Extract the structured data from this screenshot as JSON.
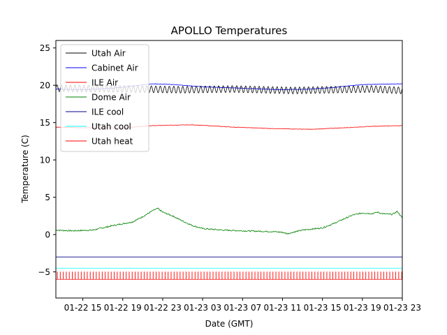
{
  "chart_data": {
    "type": "line",
    "title": "APOLLO Temperatures",
    "xlabel": "Date (GMT)",
    "ylabel": "Temperature (C)",
    "xlim_hours": [
      12.3,
      47.0
    ],
    "ylim": [
      -8.5,
      26
    ],
    "grid": false,
    "legend_position": "top-left",
    "x_ticks": [
      {
        "hours": 15,
        "label": "01-22 15"
      },
      {
        "hours": 19,
        "label": "01-22 19"
      },
      {
        "hours": 23,
        "label": "01-22 23"
      },
      {
        "hours": 27,
        "label": "01-23 03"
      },
      {
        "hours": 31,
        "label": "01-23 07"
      },
      {
        "hours": 35,
        "label": "01-23 11"
      },
      {
        "hours": 39,
        "label": "01-23 15"
      },
      {
        "hours": 43,
        "label": "01-23 19"
      },
      {
        "hours": 47,
        "label": "01-23 23"
      }
    ],
    "y_ticks": [
      -5,
      0,
      5,
      10,
      15,
      20,
      25
    ],
    "x_axis_note": "hours since 01-22 00:00 GMT",
    "series": [
      {
        "name": "Utah Air",
        "color": "#000000",
        "style": "oscillating",
        "base": [
          [
            12.3,
            19.6
          ],
          [
            20,
            19.5
          ],
          [
            25,
            19.4
          ],
          [
            30,
            19.5
          ],
          [
            36,
            19.3
          ],
          [
            40,
            19.4
          ],
          [
            44,
            19.5
          ],
          [
            47,
            19.3
          ]
        ],
        "amplitude": 0.45,
        "period_hours": 0.45
      },
      {
        "name": "Cabinet Air",
        "color": "#0000ff",
        "style": "line",
        "points": [
          [
            12.3,
            19.5
          ],
          [
            15,
            19.4
          ],
          [
            18,
            19.6
          ],
          [
            20,
            19.9
          ],
          [
            22,
            20.2
          ],
          [
            24,
            20.1
          ],
          [
            27,
            19.8
          ],
          [
            31,
            19.6
          ],
          [
            35,
            19.4
          ],
          [
            38,
            19.5
          ],
          [
            40,
            19.7
          ],
          [
            43,
            20.1
          ],
          [
            47,
            20.2
          ]
        ]
      },
      {
        "name": "ILE Air",
        "color": "#ff0000",
        "style": "line",
        "points": [
          [
            12.3,
            14.4
          ],
          [
            15,
            14.3
          ],
          [
            19,
            14.3
          ],
          [
            22,
            14.6
          ],
          [
            26,
            14.7
          ],
          [
            30,
            14.4
          ],
          [
            34,
            14.2
          ],
          [
            38,
            14.1
          ],
          [
            41,
            14.3
          ],
          [
            44,
            14.5
          ],
          [
            47,
            14.6
          ]
        ]
      },
      {
        "name": "Dome Air",
        "color": "#008000",
        "style": "line",
        "points": [
          [
            12.3,
            0.6
          ],
          [
            14,
            0.5
          ],
          [
            16,
            0.6
          ],
          [
            18,
            1.2
          ],
          [
            20,
            1.7
          ],
          [
            21,
            2.4
          ],
          [
            22,
            3.2
          ],
          [
            22.5,
            3.5
          ],
          [
            23,
            3.0
          ],
          [
            24,
            2.5
          ],
          [
            25,
            1.8
          ],
          [
            26,
            1.2
          ],
          [
            27,
            0.8
          ],
          [
            29,
            0.6
          ],
          [
            31,
            0.5
          ],
          [
            34,
            0.4
          ],
          [
            35,
            0.3
          ],
          [
            35.5,
            0.1
          ],
          [
            36,
            0.3
          ],
          [
            37,
            0.6
          ],
          [
            39,
            0.9
          ],
          [
            40,
            1.4
          ],
          [
            41,
            2.0
          ],
          [
            42,
            2.6
          ],
          [
            43,
            2.9
          ],
          [
            44,
            2.8
          ],
          [
            44.5,
            3.0
          ],
          [
            45,
            2.8
          ],
          [
            46,
            2.7
          ],
          [
            46.5,
            3.1
          ],
          [
            47,
            2.2
          ]
        ]
      },
      {
        "name": "ILE cool",
        "color": "#00008b",
        "style": "flat",
        "value": -3.0
      },
      {
        "name": "Utah cool",
        "color": "#00ffff",
        "style": "flat",
        "value": -4.5
      },
      {
        "name": "Utah heat",
        "color": "#ff0000",
        "style": "pulses",
        "low": -6.0,
        "high": -5.0,
        "period_hours": 0.3
      }
    ]
  }
}
